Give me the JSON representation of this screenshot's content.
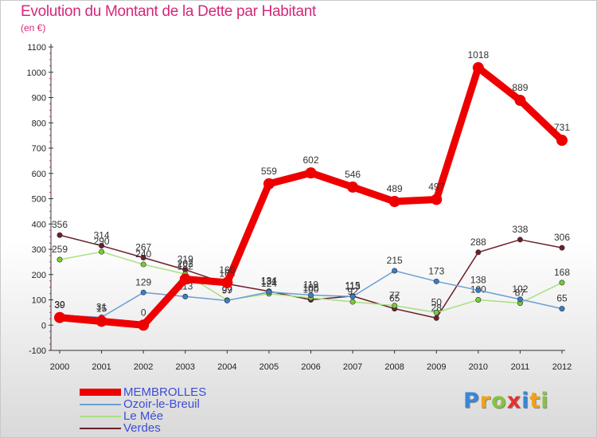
{
  "title": "Evolution du Montant de la Dette par Habitant",
  "unit": "(en €)",
  "brand": {
    "letters": [
      "P",
      "r",
      "o",
      "x",
      "i",
      "t",
      "i"
    ],
    "colors": [
      "#3a86d8",
      "#f0a21a",
      "#86c440",
      "#e53030",
      "#3a86d8",
      "#f0a21a",
      "#86c440"
    ]
  },
  "chart_data": {
    "type": "line",
    "x": [
      "2000",
      "2001",
      "2002",
      "2003",
      "2004",
      "2005",
      "2006",
      "2007",
      "2008",
      "2009",
      "2010",
      "2011",
      "2012"
    ],
    "ylim": [
      -100,
      1100
    ],
    "yticks": [
      "-100",
      "0",
      "100",
      "200",
      "300",
      "400",
      "500",
      "600",
      "700",
      "800",
      "900",
      "1000",
      "1100"
    ],
    "grid": false,
    "legend_position": "bottom-left",
    "series": [
      {
        "name": "Verdes",
        "color": "#6b1f2a",
        "point_color": "#6b1f2a",
        "values": [
          356,
          314,
          267,
          219,
          163,
          134,
          100,
          115,
          65,
          28,
          288,
          338,
          306
        ],
        "labels": [
          "356",
          "314",
          "267",
          "219",
          "163",
          "134",
          "100",
          "115",
          "65",
          "28",
          "288",
          "338",
          "306"
        ]
      },
      {
        "name": "Le Mée",
        "color": "#a8e07e",
        "point_color": "#77cc33",
        "values": [
          259,
          290,
          240,
          202,
          99,
          124,
          108,
          92,
          77,
          50,
          100,
          87,
          168
        ],
        "labels": [
          "259",
          "290",
          "240",
          "202",
          "99",
          "124",
          "108",
          "92",
          "77",
          "50",
          "100",
          "87",
          "168"
        ]
      },
      {
        "name": "Ozoir-le-Breuil",
        "color": "#6a9ed4",
        "point_color": "#3a7cc8",
        "values": [
          39,
          31,
          129,
          113,
          97,
          131,
          119,
          113,
          215,
          173,
          138,
          102,
          65
        ],
        "labels": [
          "39",
          "31",
          "129",
          "113",
          "97",
          "131",
          "119",
          "113",
          "215",
          "173",
          "138",
          "102",
          "65"
        ]
      },
      {
        "name": "MEMBROLLES",
        "color": "#ee0000",
        "point_color": "#ee0000",
        "values": [
          30,
          15,
          0,
          182,
          168,
          559,
          602,
          546,
          489,
          497,
          1018,
          889,
          731
        ],
        "labels": [
          "30",
          "15",
          "0",
          "182",
          "168",
          "559",
          "602",
          "546",
          "489",
          "497",
          "1018",
          "889",
          "731"
        ]
      }
    ],
    "legend": [
      "MEMBROLLES",
      "Ozoir-le-Breuil",
      "Le Mée",
      "Verdes"
    ]
  }
}
